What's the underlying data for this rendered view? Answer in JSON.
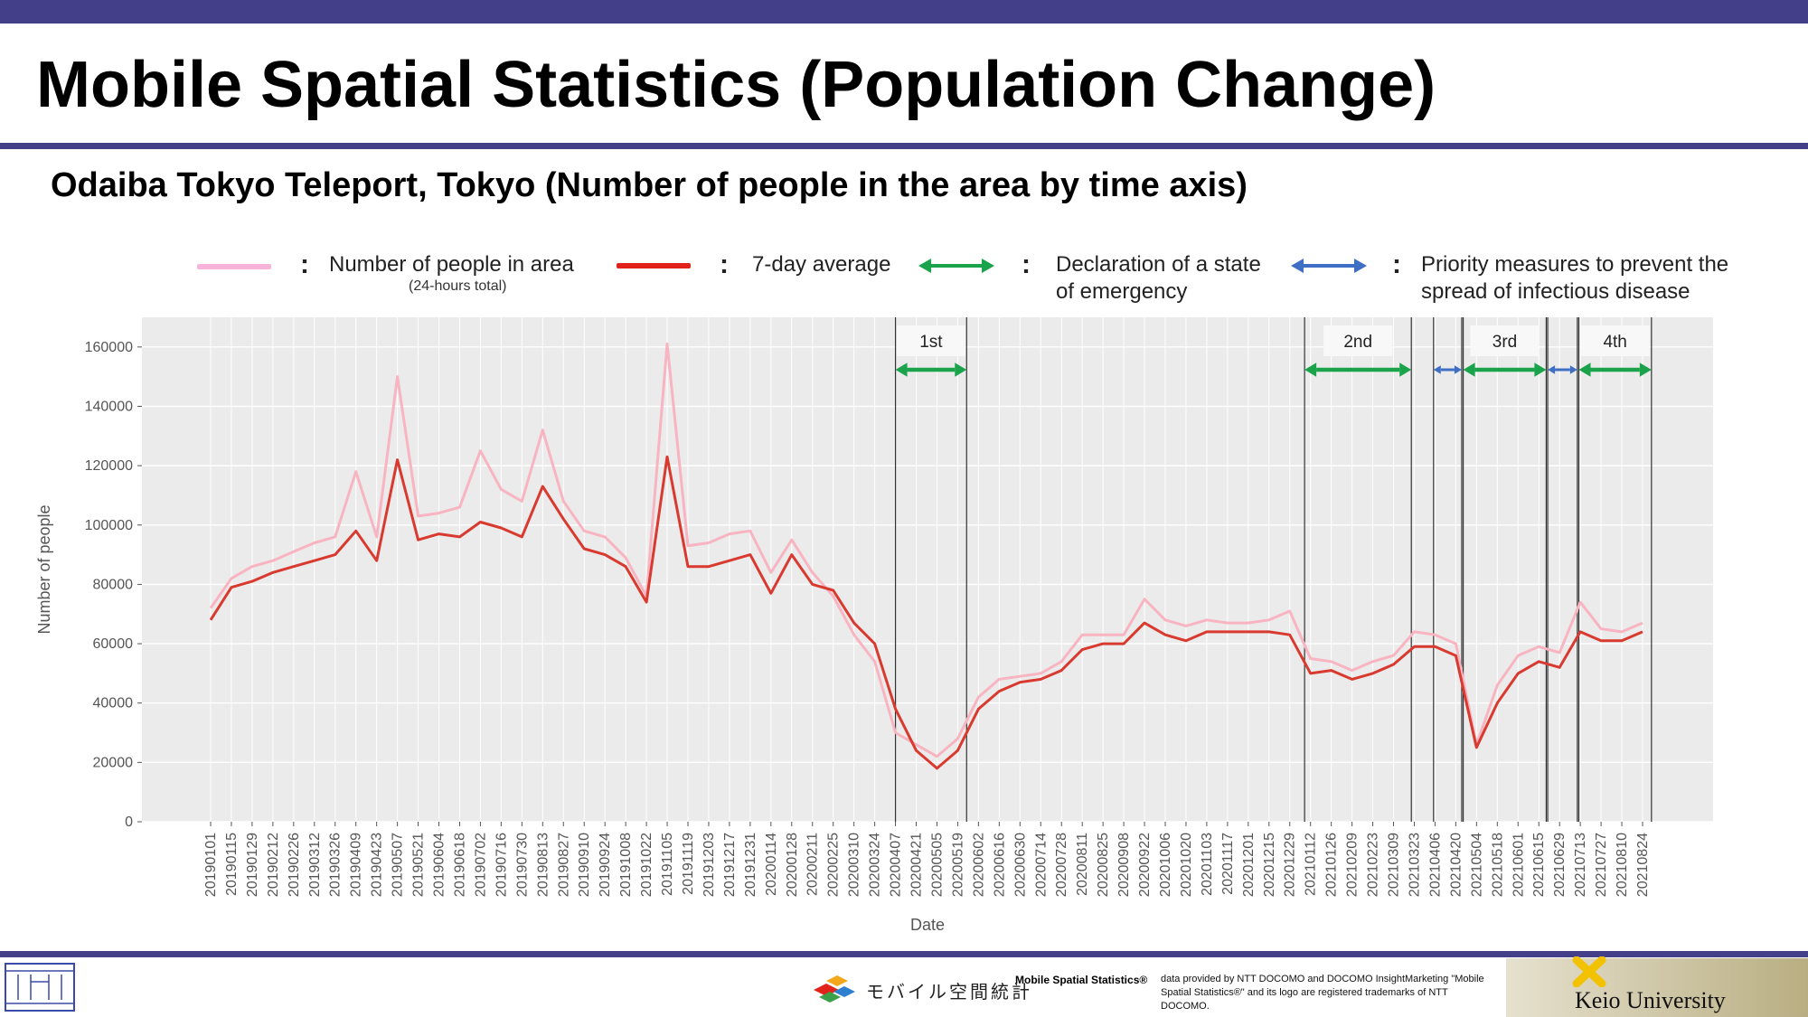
{
  "slide": {
    "title": "Mobile Spatial Statistics (Population Change)",
    "subtitle": "Odaiba Tokyo Teleport, Tokyo (Number of people in the area by time axis)"
  },
  "legend": {
    "daily": "Number of people in area",
    "daily_note": "(24-hours total)",
    "avg": "7-day average",
    "emergency": "Declaration of a state of emergency",
    "priority": "Priority measures to prevent the spread of infectious disease",
    "colon": ":"
  },
  "colors": {
    "brand_bar": "#433f88",
    "daily": "#f8b4c0",
    "avg": "#d93a2f",
    "emergency": "#1aa34a",
    "priority": "#3f6fc4",
    "panel": "#ebebeb",
    "grid": "#ffffff"
  },
  "chart_data": {
    "type": "line",
    "xlabel": "Date",
    "ylabel": "Number of people",
    "ylim": [
      0,
      170000
    ],
    "yticks": [
      "0",
      "20000",
      "40000",
      "60000",
      "80000",
      "100000",
      "120000",
      "140000",
      "160000"
    ],
    "grid": true,
    "legend_position": "top",
    "categories": [
      "20190101",
      "20190115",
      "20190129",
      "20190212",
      "20190226",
      "20190312",
      "20190326",
      "20190409",
      "20190423",
      "20190507",
      "20190521",
      "20190604",
      "20190618",
      "20190702",
      "20190716",
      "20190730",
      "20190813",
      "20190827",
      "20190910",
      "20190924",
      "20191008",
      "20191022",
      "20191105",
      "20191119",
      "20191203",
      "20191217",
      "20191231",
      "20200114",
      "20200128",
      "20200211",
      "20200225",
      "20200310",
      "20200324",
      "20200407",
      "20200421",
      "20200505",
      "20200519",
      "20200602",
      "20200616",
      "20200630",
      "20200714",
      "20200728",
      "20200811",
      "20200825",
      "20200908",
      "20200922",
      "20201006",
      "20201020",
      "20201103",
      "20201117",
      "20201201",
      "20201215",
      "20201229",
      "20210112",
      "20210126",
      "20210209",
      "20210223",
      "20210309",
      "20210323",
      "20210406",
      "20210420",
      "20210504",
      "20210518",
      "20210601",
      "20210615",
      "20210629",
      "20210713",
      "20210727",
      "20210810",
      "20210824"
    ],
    "series": [
      {
        "name": "7-day average",
        "values": [
          68000,
          79000,
          81000,
          84000,
          86000,
          88000,
          90000,
          98000,
          88000,
          122000,
          95000,
          97000,
          96000,
          101000,
          99000,
          96000,
          113000,
          102000,
          92000,
          90000,
          86000,
          74000,
          123000,
          86000,
          86000,
          88000,
          90000,
          77000,
          90000,
          80000,
          78000,
          67000,
          60000,
          38000,
          24000,
          18000,
          24000,
          38000,
          44000,
          47000,
          48000,
          51000,
          58000,
          60000,
          60000,
          67000,
          63000,
          61000,
          64000,
          64000,
          64000,
          64000,
          63000,
          50000,
          51000,
          48000,
          50000,
          53000,
          59000,
          59000,
          56000,
          25000,
          40000,
          50000,
          54000,
          52000,
          64000,
          61000,
          61000,
          64000
        ]
      },
      {
        "name": "Number of people in area",
        "values": [
          72000,
          82000,
          86000,
          88000,
          91000,
          94000,
          96000,
          118000,
          96000,
          150000,
          103000,
          104000,
          106000,
          125000,
          112000,
          108000,
          132000,
          108000,
          98000,
          96000,
          89000,
          76000,
          161000,
          93000,
          94000,
          97000,
          98000,
          84000,
          95000,
          84000,
          76000,
          63000,
          54000,
          30000,
          26000,
          22000,
          28000,
          42000,
          48000,
          49000,
          50000,
          54000,
          63000,
          63000,
          63000,
          75000,
          68000,
          66000,
          68000,
          67000,
          67000,
          68000,
          71000,
          55000,
          54000,
          51000,
          54000,
          56000,
          64000,
          63000,
          60000,
          26000,
          46000,
          56000,
          59000,
          57000,
          74000,
          65000,
          64000,
          67000
        ]
      }
    ],
    "periods": [
      {
        "label": "1st",
        "kind": "emergency",
        "start": "20200407",
        "end": "20200525"
      },
      {
        "label": "2nd",
        "kind": "emergency",
        "start": "20210108",
        "end": "20210321"
      },
      {
        "kind": "priority",
        "start": "20210405",
        "end": "20210424"
      },
      {
        "label": "3rd",
        "kind": "emergency",
        "start": "20210425",
        "end": "20210620"
      },
      {
        "kind": "priority",
        "start": "20210621",
        "end": "20210711"
      },
      {
        "label": "4th",
        "kind": "emergency",
        "start": "20210712",
        "end": "20210830"
      }
    ]
  },
  "footer": {
    "brand": "モバイル空間統計",
    "credit_title": "Mobile Spatial Statistics®",
    "credit_text": "data provided by NTT DOCOMO and DOCOMO InsightMarketing \"Mobile Spatial Statistics®\" and its logo are registered trademarks of NTT DOCOMO.",
    "university": "Keio University"
  }
}
